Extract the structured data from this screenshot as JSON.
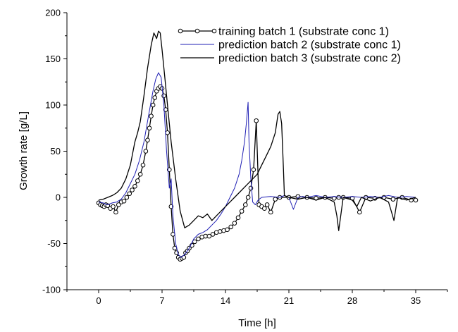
{
  "chart_data": {
    "type": "line",
    "title": "",
    "xlabel": "Time [h]",
    "ylabel": "Growth rate [g/L]",
    "xlim": [
      -3.5,
      38.5
    ],
    "ylim": [
      -100,
      200
    ],
    "xticks": [
      0,
      7,
      14,
      21,
      28,
      35
    ],
    "yticks": [
      -100,
      -50,
      0,
      50,
      100,
      150,
      200
    ],
    "grid": false,
    "legend_position": "top-right",
    "series": [
      {
        "name": "training batch 1 (substrate conc 1)",
        "color": "#000000",
        "marker": "open-circle",
        "x": [
          0,
          0.2,
          0.4,
          0.6,
          0.8,
          1.0,
          1.3,
          1.6,
          1.9,
          2.2,
          2.5,
          2.8,
          3.1,
          3.4,
          3.7,
          4.0,
          4.3,
          4.6,
          4.9,
          5.2,
          5.4,
          5.6,
          5.8,
          6.0,
          6.2,
          6.4,
          6.6,
          6.8,
          7.0,
          7.2,
          7.4,
          7.6,
          7.8,
          8.0,
          8.2,
          8.4,
          8.6,
          8.8,
          9.0,
          9.2,
          9.4,
          9.6,
          9.8,
          10.0,
          10.3,
          10.6,
          11.0,
          11.4,
          11.8,
          12.2,
          12.6,
          13.0,
          13.4,
          13.8,
          14.2,
          14.6,
          15.0,
          15.4,
          15.8,
          16.2,
          16.5,
          16.8,
          17.1,
          17.4,
          17.7,
          18.0,
          18.3,
          18.6,
          19.0,
          19.5,
          20.0,
          21.0,
          22.0,
          23.0,
          24.0,
          25.0,
          26.0,
          26.5,
          27.0,
          28.0,
          28.8,
          29.5,
          30.5,
          31.5,
          32.5,
          33.5,
          34.5,
          35.0
        ],
        "y": [
          -6,
          -8,
          -9,
          -10,
          -8,
          -9,
          -12,
          -10,
          -16,
          -8,
          -5,
          -4,
          0,
          4,
          8,
          12,
          18,
          25,
          35,
          50,
          62,
          75,
          88,
          100,
          108,
          115,
          118,
          120,
          118,
          110,
          95,
          70,
          30,
          -10,
          -40,
          -55,
          -60,
          -65,
          -67,
          -66,
          -65,
          -60,
          -58,
          -55,
          -52,
          -48,
          -45,
          -43,
          -42,
          -42,
          -40,
          -38,
          -37,
          -36,
          -35,
          -32,
          -28,
          -22,
          -15,
          -8,
          0,
          10,
          30,
          83,
          -8,
          -10,
          -12,
          -8,
          -16,
          -2,
          0,
          0,
          1,
          0,
          -1,
          0,
          -1,
          0,
          0,
          -1,
          -16,
          0,
          -1,
          0,
          -2,
          0,
          -3,
          -3
        ]
      },
      {
        "name": "prediction batch 2 (substrate conc 1)",
        "color": "#1f1fb4",
        "marker": "none",
        "x": [
          0,
          0.5,
          1.0,
          1.5,
          2.0,
          2.5,
          3.0,
          3.5,
          4.0,
          4.5,
          5.0,
          5.5,
          6.0,
          6.3,
          6.6,
          6.9,
          7.2,
          7.5,
          7.8,
          8.0,
          8.2,
          8.5,
          8.8,
          9.1,
          9.5,
          10.0,
          10.5,
          11.0,
          11.5,
          12.0,
          12.5,
          13.0,
          13.5,
          14.0,
          14.5,
          15.0,
          15.5,
          15.8,
          16.1,
          16.3,
          16.5,
          16.6,
          16.8,
          17.0,
          17.3,
          17.6,
          18.0,
          19.0,
          20.0,
          20.5,
          21.0,
          21.5,
          22.0,
          22.5,
          23.0,
          24.0,
          25.0,
          26.0,
          27.0,
          28.0,
          29.0,
          30.0,
          31.0,
          32.0,
          33.0,
          34.0,
          35.0
        ],
        "y": [
          -5,
          -6,
          -8,
          -6,
          -5,
          -2,
          5,
          15,
          25,
          40,
          60,
          88,
          115,
          128,
          135,
          130,
          100,
          50,
          10,
          20,
          -20,
          -50,
          -62,
          -65,
          -62,
          -55,
          -45,
          -40,
          -38,
          -35,
          -30,
          -25,
          -18,
          -10,
          0,
          10,
          25,
          40,
          60,
          80,
          103,
          60,
          20,
          -5,
          -8,
          -3,
          0,
          1,
          0,
          2,
          0,
          -13,
          0,
          1,
          0,
          2,
          0,
          1,
          0,
          1,
          0,
          1,
          0,
          2,
          0,
          1,
          0
        ]
      },
      {
        "name": "prediction batch 3 (substrate conc 2)",
        "color": "#000000",
        "marker": "none",
        "x": [
          0,
          0.5,
          1.0,
          1.5,
          2.0,
          2.5,
          3.0,
          3.5,
          4.0,
          4.3,
          4.6,
          5.0,
          5.4,
          5.8,
          6.1,
          6.4,
          6.6,
          6.8,
          7.0,
          7.3,
          7.6,
          8.0,
          8.5,
          9.0,
          9.5,
          10.0,
          10.5,
          11.0,
          11.5,
          12.0,
          12.5,
          13.0,
          13.5,
          14.0,
          14.5,
          15.0,
          15.5,
          16.0,
          16.5,
          17.0,
          17.5,
          18.0,
          18.5,
          19.0,
          19.5,
          19.8,
          20.0,
          20.2,
          20.4,
          20.5,
          21.0,
          22.0,
          23.0,
          24.0,
          25.0,
          26.0,
          26.3,
          26.5,
          27.0,
          28.0,
          28.5,
          29.0,
          30.0,
          31.0,
          32.0,
          32.3,
          32.6,
          33.0,
          34.0,
          35.0
        ],
        "y": [
          -3,
          -2,
          0,
          2,
          5,
          10,
          20,
          35,
          60,
          70,
          82,
          110,
          140,
          165,
          178,
          172,
          180,
          178,
          160,
          130,
          100,
          60,
          20,
          -15,
          -33,
          -30,
          -25,
          -20,
          -22,
          -18,
          -25,
          -20,
          -15,
          -10,
          -5,
          0,
          5,
          10,
          15,
          20,
          25,
          35,
          45,
          55,
          70,
          90,
          93,
          80,
          30,
          2,
          0,
          -2,
          0,
          -3,
          0,
          -5,
          -20,
          -36,
          0,
          -3,
          -10,
          0,
          -4,
          0,
          -5,
          -15,
          -25,
          0,
          -3,
          0
        ]
      }
    ]
  }
}
